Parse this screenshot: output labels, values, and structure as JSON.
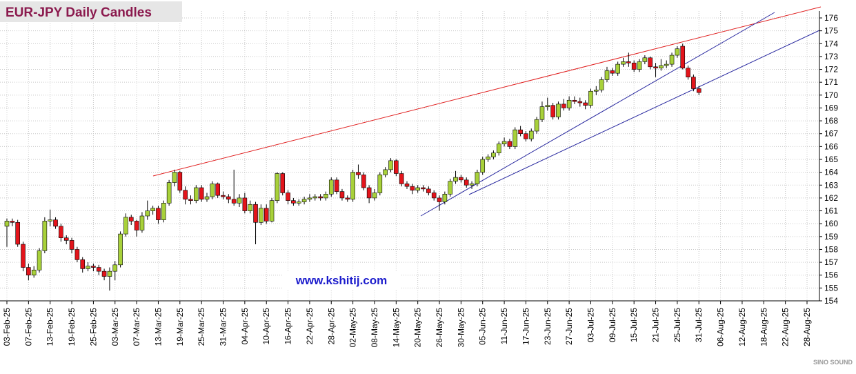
{
  "chart_data": {
    "type": "candlestick",
    "title": "EUR-JPY Daily  Candles",
    "annotation": "www.kshitij.com",
    "watermark": "SINO SOUND",
    "categories": [
      "03-Feb-25",
      null,
      null,
      null,
      "07-Feb-25",
      null,
      null,
      null,
      "13-Feb-25",
      null,
      null,
      null,
      "19-Feb-25",
      null,
      null,
      null,
      "25-Feb-25",
      null,
      null,
      null,
      "03-Mar-25",
      null,
      null,
      null,
      "07-Mar-25",
      null,
      null,
      null,
      "13-Mar-25",
      null,
      null,
      null,
      "19-Mar-25",
      null,
      null,
      null,
      "25-Mar-25",
      null,
      null,
      null,
      "31-Mar-25",
      null,
      null,
      null,
      "04-Apr-25",
      null,
      null,
      null,
      "10-Apr-25",
      null,
      null,
      null,
      "16-Apr-25",
      null,
      null,
      null,
      "22-Apr-25",
      null,
      null,
      null,
      "28-Apr-25",
      null,
      null,
      null,
      "02-May-25",
      null,
      null,
      null,
      "08-May-25",
      null,
      null,
      null,
      "14-May-25",
      null,
      null,
      null,
      "20-May-25",
      null,
      null,
      null,
      "26-May-25",
      null,
      null,
      null,
      "30-May-25",
      null,
      null,
      null,
      "05-Jun-25",
      null,
      null,
      null,
      "11-Jun-25",
      null,
      null,
      null,
      "17-Jun-25",
      null,
      null,
      null,
      "23-Jun-25",
      null,
      null,
      null,
      "27-Jun-25",
      null,
      null,
      null,
      "03-Jul-25",
      null,
      null,
      null,
      "09-Jul-25",
      null,
      null,
      null,
      "15-Jul-25",
      null,
      null,
      null,
      "21-Jul-25",
      null,
      null,
      null,
      "25-Jul-25",
      null,
      null,
      null,
      "31-Jul-25",
      null,
      null,
      null,
      "06-Aug-25",
      null,
      null,
      null,
      "12-Aug-25",
      null,
      null,
      null,
      "18-Aug-25",
      null,
      null,
      null,
      "22-Aug-25",
      null,
      null,
      null,
      "28-Aug-25"
    ],
    "open": [
      159.8,
      160.2,
      160.1,
      158.4,
      156.6,
      156.0,
      156.4,
      157.9,
      160.2,
      160.3,
      159.8,
      158.9,
      158.7,
      158.0,
      157.2,
      156.5,
      156.7,
      156.6,
      156.3,
      155.9,
      156.3,
      156.8,
      159.2,
      160.5,
      160.2,
      159.5,
      160.6,
      161.0,
      161.2,
      160.3,
      161.6,
      163.2,
      164.0,
      162.6,
      161.9,
      161.8,
      162.8,
      161.9,
      162.1,
      163.1,
      162.2,
      162.1,
      161.9,
      161.6,
      162.0,
      161.0,
      161.5,
      160.1,
      161.2,
      160.2,
      161.8,
      163.9,
      162.4,
      161.8,
      161.6,
      161.7,
      161.9,
      162.0,
      162.1,
      162.0,
      162.3,
      163.4,
      162.5,
      162.0,
      161.9,
      164.0,
      163.8,
      162.8,
      162.0,
      162.4,
      163.8,
      164.2,
      164.9,
      163.9,
      163.1,
      162.9,
      162.6,
      162.8,
      162.7,
      162.4,
      162.0,
      161.7,
      162.3,
      163.3,
      163.6,
      163.4,
      163.0,
      163.1,
      164.0,
      165.0,
      165.2,
      165.5,
      166.2,
      166.4,
      166.0,
      167.3,
      167.0,
      166.6,
      167.2,
      168.1,
      169.1,
      169.2,
      168.3,
      169.3,
      169.0,
      169.6,
      169.5,
      169.4,
      169.2,
      170.3,
      170.4,
      171.2,
      171.9,
      171.7,
      172.4,
      172.6,
      172.5,
      172.0,
      172.6,
      172.9,
      172.2,
      172.1,
      172.3,
      172.4,
      173.1,
      173.8,
      172.1,
      171.4,
      170.5,
      null,
      null,
      null,
      null,
      null,
      null,
      null,
      null,
      null,
      null,
      null,
      null,
      null,
      null,
      null,
      null,
      null,
      null,
      null,
      null
    ],
    "high": [
      160.4,
      160.4,
      160.3,
      158.6,
      156.9,
      156.7,
      158.1,
      160.5,
      161.1,
      160.5,
      160.0,
      159.1,
      158.9,
      158.2,
      157.4,
      157.0,
      156.9,
      156.8,
      156.5,
      156.6,
      157.1,
      159.4,
      160.8,
      160.7,
      160.3,
      160.9,
      161.8,
      161.4,
      161.4,
      161.8,
      163.4,
      164.2,
      164.1,
      162.9,
      162.2,
      163.0,
      163.0,
      162.4,
      163.3,
      163.2,
      162.5,
      162.3,
      164.2,
      162.3,
      162.4,
      161.8,
      161.7,
      161.5,
      161.5,
      162.0,
      164.0,
      164.0,
      162.6,
      162.0,
      161.9,
      162.1,
      162.3,
      162.3,
      162.3,
      162.5,
      163.6,
      163.6,
      162.7,
      162.2,
      164.2,
      164.6,
      164.0,
      163.0,
      162.7,
      164.0,
      164.4,
      165.1,
      165.0,
      164.1,
      163.3,
      163.1,
      163.0,
      163.0,
      162.9,
      162.6,
      162.2,
      162.5,
      163.5,
      164.1,
      163.8,
      163.6,
      163.3,
      164.2,
      165.2,
      165.4,
      165.7,
      166.4,
      166.7,
      166.6,
      167.5,
      167.6,
      167.2,
      167.4,
      168.3,
      169.5,
      169.8,
      169.4,
      169.5,
      169.7,
      169.9,
      169.9,
      169.8,
      169.6,
      170.5,
      170.7,
      171.4,
      172.2,
      172.1,
      172.6,
      172.9,
      173.3,
      172.7,
      172.8,
      173.1,
      173.0,
      172.5,
      172.8,
      172.7,
      173.3,
      173.8,
      174.0,
      172.3,
      171.6,
      170.7,
      null,
      null,
      null,
      null,
      null,
      null,
      null,
      null,
      null,
      null,
      null,
      null,
      null,
      null,
      null,
      null,
      null,
      null,
      null,
      null
    ],
    "low": [
      158.2,
      159.8,
      158.2,
      156.3,
      155.6,
      155.8,
      156.2,
      157.7,
      159.8,
      159.6,
      158.6,
      158.4,
      157.7,
      157.0,
      156.2,
      156.3,
      156.3,
      156.0,
      155.6,
      154.8,
      155.6,
      156.6,
      159.0,
      159.9,
      159.0,
      159.3,
      160.3,
      160.7,
      160.0,
      160.1,
      161.4,
      162.9,
      162.4,
      161.5,
      161.5,
      161.6,
      161.7,
      161.7,
      161.9,
      162.0,
      161.9,
      161.6,
      161.4,
      161.3,
      160.8,
      160.8,
      158.4,
      159.9,
      160.0,
      160.1,
      161.6,
      162.2,
      161.5,
      161.4,
      161.4,
      161.5,
      161.7,
      161.8,
      161.8,
      161.8,
      162.1,
      162.3,
      161.8,
      161.7,
      161.7,
      163.5,
      162.6,
      161.6,
      161.8,
      162.2,
      163.6,
      164.0,
      163.7,
      162.9,
      162.7,
      162.3,
      162.4,
      162.5,
      162.2,
      161.8,
      161.0,
      161.5,
      162.1,
      163.1,
      163.2,
      162.8,
      162.7,
      162.9,
      163.8,
      164.8,
      165.0,
      165.3,
      166.0,
      165.8,
      165.8,
      166.8,
      166.4,
      166.4,
      167.0,
      167.9,
      168.8,
      168.1,
      168.1,
      168.8,
      168.8,
      169.3,
      169.1,
      168.9,
      169.0,
      170.0,
      170.2,
      171.0,
      171.5,
      171.5,
      172.2,
      172.2,
      171.8,
      171.8,
      172.4,
      172.0,
      171.4,
      171.9,
      172.1,
      172.2,
      172.9,
      172.0,
      171.2,
      170.3,
      170.0,
      null,
      null,
      null,
      null,
      null,
      null,
      null,
      null,
      null,
      null,
      null,
      null,
      null,
      null,
      null,
      null,
      null,
      null,
      null,
      null
    ],
    "close": [
      160.2,
      160.1,
      158.4,
      156.6,
      156.0,
      156.4,
      157.9,
      160.2,
      160.3,
      159.8,
      158.9,
      158.7,
      158.0,
      157.2,
      156.5,
      156.7,
      156.6,
      156.3,
      155.9,
      156.3,
      156.8,
      159.2,
      160.5,
      160.2,
      159.5,
      160.6,
      161.0,
      161.2,
      160.3,
      161.6,
      163.2,
      164.0,
      162.6,
      161.9,
      161.8,
      162.8,
      161.9,
      162.1,
      163.1,
      162.2,
      162.1,
      161.9,
      161.6,
      162.0,
      161.0,
      161.5,
      160.1,
      161.2,
      160.2,
      161.8,
      163.9,
      162.4,
      161.8,
      161.6,
      161.7,
      161.9,
      162.0,
      162.1,
      162.0,
      162.3,
      163.4,
      162.5,
      162.0,
      161.9,
      164.0,
      163.8,
      162.8,
      162.0,
      162.4,
      163.8,
      164.2,
      164.9,
      163.9,
      163.1,
      162.9,
      162.6,
      162.8,
      162.7,
      162.4,
      162.0,
      161.7,
      162.3,
      163.3,
      163.6,
      163.4,
      163.0,
      163.1,
      164.0,
      165.0,
      165.2,
      165.5,
      166.2,
      166.4,
      166.0,
      167.3,
      167.0,
      166.6,
      167.2,
      168.1,
      169.1,
      169.2,
      168.3,
      169.3,
      169.0,
      169.6,
      169.5,
      169.4,
      169.2,
      170.3,
      170.4,
      171.2,
      171.9,
      171.7,
      172.4,
      172.6,
      172.5,
      172.0,
      172.6,
      172.9,
      172.2,
      172.1,
      172.3,
      172.4,
      173.1,
      173.6,
      172.1,
      171.4,
      170.5,
      170.2,
      null,
      null,
      null,
      null,
      null,
      null,
      null,
      null,
      null,
      null,
      null,
      null,
      null,
      null,
      null,
      null,
      null,
      null,
      null,
      null
    ],
    "up_color": "#a8d13a",
    "down_color": "#e3141b",
    "ylim": [
      154,
      176
    ],
    "yticks": [
      154,
      155,
      156,
      157,
      158,
      159,
      160,
      161,
      162,
      163,
      164,
      165,
      166,
      167,
      168,
      169,
      170,
      171,
      172,
      173,
      174,
      175,
      176
    ],
    "grid": true
  }
}
